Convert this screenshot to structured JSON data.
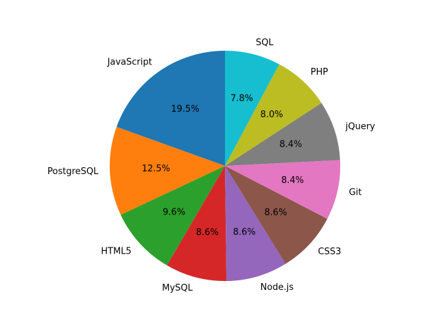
{
  "chart_data": {
    "type": "pie",
    "start_angle_deg": 90,
    "direction": "counterclockwise",
    "series": [
      {
        "label": "JavaScript",
        "value": 19.5,
        "pct_text": "19.5%",
        "color": "#1f77b4"
      },
      {
        "label": "PostgreSQL",
        "value": 12.5,
        "pct_text": "12.5%",
        "color": "#ff7f0e"
      },
      {
        "label": "HTML5",
        "value": 9.6,
        "pct_text": "9.6%",
        "color": "#2ca02c"
      },
      {
        "label": "MySQL",
        "value": 8.6,
        "pct_text": "8.6%",
        "color": "#d62728"
      },
      {
        "label": "Node.js",
        "value": 8.6,
        "pct_text": "8.6%",
        "color": "#9467bd"
      },
      {
        "label": "CSS3",
        "value": 8.6,
        "pct_text": "8.6%",
        "color": "#8c564b"
      },
      {
        "label": "Git",
        "value": 8.4,
        "pct_text": "8.4%",
        "color": "#e377c2"
      },
      {
        "label": "jQuery",
        "value": 8.4,
        "pct_text": "8.4%",
        "color": "#7f7f7f"
      },
      {
        "label": "PHP",
        "value": 8.0,
        "pct_text": "8.0%",
        "color": "#bcbd22"
      },
      {
        "label": "SQL",
        "value": 7.8,
        "pct_text": "7.8%",
        "color": "#17becf"
      }
    ]
  }
}
